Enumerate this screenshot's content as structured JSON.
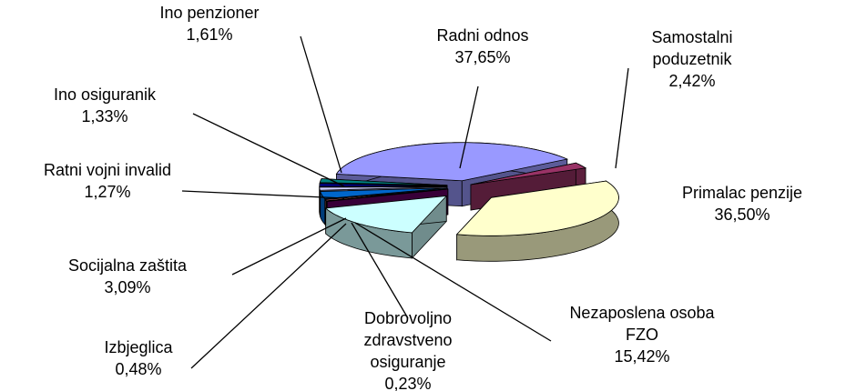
{
  "chart_data": {
    "type": "pie",
    "categories": [
      "Radni odnos",
      "Samostalni poduzetnik",
      "Primalac penzije",
      "Nezaposlena osoba FZO",
      "Dobrovoljno zdravstveno osiguranje",
      "Izbjeglica",
      "Socijalna zaštita",
      "Ratni vojni invalid",
      "Ino osiguranik",
      "Ino penzioner"
    ],
    "values": [
      37.65,
      2.42,
      36.5,
      15.42,
      0.23,
      0.48,
      3.09,
      1.27,
      1.33,
      1.61
    ],
    "value_labels": [
      "37,65%",
      "2,42%",
      "36,50%",
      "15,42%",
      "0,23%",
      "0,48%",
      "3,09%",
      "1,27%",
      "1,33%",
      "1,61%"
    ],
    "colors": [
      "#9999ff",
      "#993366",
      "#ffffcc",
      "#ccffff",
      "#660066",
      "#ff8080",
      "#0066cc",
      "#ccccff",
      "#000080",
      "#008080"
    ]
  }
}
